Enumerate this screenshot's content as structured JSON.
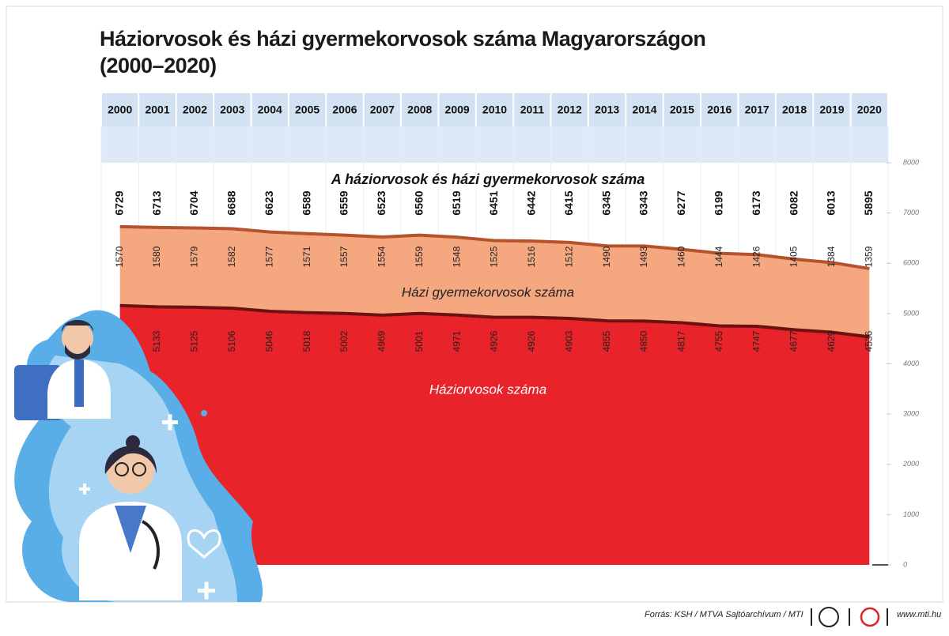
{
  "chart_data": {
    "type": "stacked-area",
    "title": "Háziorvosok és házi gyermekorvosok száma Magyarországon",
    "subtitle": "(2000–2020)",
    "categories": [
      "2000",
      "2001",
      "2002",
      "2003",
      "2004",
      "2005",
      "2006",
      "2007",
      "2008",
      "2009",
      "2010",
      "2011",
      "2012",
      "2013",
      "2014",
      "2015",
      "2016",
      "2017",
      "2018",
      "2019",
      "2020"
    ],
    "series": [
      {
        "name": "Háziorvosok száma",
        "color": "#e8232a",
        "line_color": "#6e1111",
        "values": [
          5159,
          5133,
          5125,
          5106,
          5046,
          5018,
          5002,
          4969,
          5001,
          4971,
          4926,
          4926,
          4903,
          4855,
          4850,
          4817,
          4755,
          4747,
          4677,
          4629,
          4536
        ]
      },
      {
        "name": "Házi gyermekorvosok száma",
        "color": "#f5a880",
        "line_color": "#b4532c",
        "values": [
          1570,
          1580,
          1579,
          1582,
          1577,
          1571,
          1557,
          1554,
          1559,
          1548,
          1525,
          1516,
          1512,
          1490,
          1493,
          1460,
          1444,
          1426,
          1405,
          1384,
          1359
        ]
      }
    ],
    "totals": {
      "name": "A háziorvosok és házi gyermekorvosok száma",
      "values": [
        6729,
        6713,
        6704,
        6688,
        6623,
        6589,
        6559,
        6523,
        6560,
        6519,
        6451,
        6442,
        6415,
        6345,
        6343,
        6277,
        6199,
        6173,
        6082,
        6013,
        5895
      ]
    },
    "ylim": [
      0,
      8000
    ],
    "yticks": [
      0,
      1000,
      2000,
      3000,
      4000,
      5000,
      6000,
      7000,
      8000
    ],
    "source": "Forrás: KSH / MTVA Sajtóarchívum / MTI",
    "website": "www.mti.hu"
  }
}
